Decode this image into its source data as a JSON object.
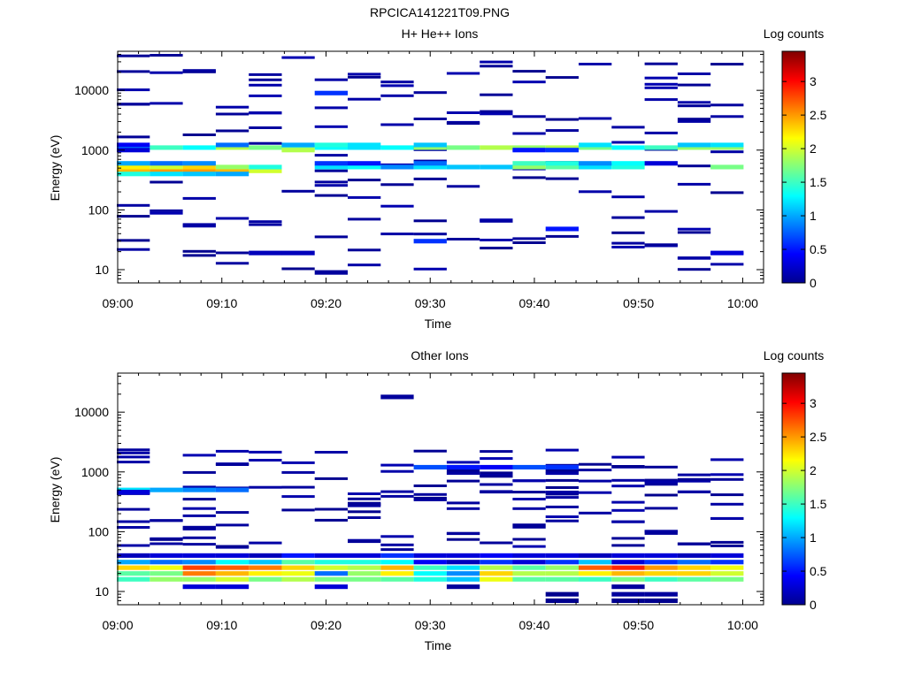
{
  "figure": {
    "title": "RPCICA141221T09.PNG"
  },
  "chart_data": [
    {
      "type": "heatmap",
      "title": "H+ He++ Ions",
      "xlabel": "Time",
      "ylabel": "Energy (eV)",
      "colorbar_label": "Log counts",
      "x_range": [
        "09:00",
        "10:02"
      ],
      "x_ticks": [
        "09:00",
        "09:10",
        "09:20",
        "09:30",
        "09:40",
        "09:50",
        "10:00"
      ],
      "y_scale": "log",
      "y_range": [
        6,
        45000
      ],
      "y_ticks": [
        "10",
        "100",
        "1000",
        "10000"
      ],
      "c_range": [
        0,
        3.45
      ],
      "c_ticks": [
        "0",
        "0.5",
        "1",
        "1.5",
        "2",
        "2.5",
        "3"
      ],
      "time_bins": [
        "09:01:30",
        "09:04:40",
        "09:07:50",
        "09:11:00",
        "09:14:10",
        "09:17:20",
        "09:20:30",
        "09:23:40",
        "09:26:50",
        "09:30:00",
        "09:33:10",
        "09:36:20",
        "09:39:30",
        "09:42:40",
        "09:45:50",
        "09:49:00",
        "09:52:10",
        "09:55:20",
        "09:58:30"
      ],
      "cells": [
        {
          "t": 0,
          "e": 450,
          "v": 2.4
        },
        {
          "t": 1,
          "e": 450,
          "v": 2.5
        },
        {
          "t": 2,
          "e": 450,
          "v": 2.5
        },
        {
          "t": 3,
          "e": 450,
          "v": 2.4
        },
        {
          "t": 4,
          "e": 450,
          "v": 2.0
        },
        {
          "t": 0,
          "e": 520,
          "v": 2.2
        },
        {
          "t": 1,
          "e": 520,
          "v": 2.0
        },
        {
          "t": 2,
          "e": 520,
          "v": 2.3
        },
        {
          "t": 3,
          "e": 520,
          "v": 1.8
        },
        {
          "t": 4,
          "e": 520,
          "v": 1.4
        },
        {
          "t": 0,
          "e": 400,
          "v": 1.4
        },
        {
          "t": 1,
          "e": 400,
          "v": 1.2
        },
        {
          "t": 2,
          "e": 400,
          "v": 1.1
        },
        {
          "t": 3,
          "e": 400,
          "v": 1.0
        },
        {
          "t": 0,
          "e": 600,
          "v": 1.0
        },
        {
          "t": 1,
          "e": 600,
          "v": 0.8
        },
        {
          "t": 2,
          "e": 600,
          "v": 0.9
        },
        {
          "t": 0,
          "e": 1100,
          "v": 1.1
        },
        {
          "t": 1,
          "e": 1100,
          "v": 1.5
        },
        {
          "t": 2,
          "e": 1100,
          "v": 1.3
        },
        {
          "t": 3,
          "e": 1100,
          "v": 1.9
        },
        {
          "t": 4,
          "e": 1100,
          "v": 1.7
        },
        {
          "t": 5,
          "e": 1100,
          "v": 1.6
        },
        {
          "t": 6,
          "e": 1100,
          "v": 1.3
        },
        {
          "t": 7,
          "e": 1100,
          "v": 1.2
        },
        {
          "t": 8,
          "e": 1100,
          "v": 1.3
        },
        {
          "t": 9,
          "e": 1100,
          "v": 1.8
        },
        {
          "t": 10,
          "e": 1100,
          "v": 1.7
        },
        {
          "t": 11,
          "e": 1100,
          "v": 1.9
        },
        {
          "t": 12,
          "e": 1100,
          "v": 1.8
        },
        {
          "t": 13,
          "e": 1100,
          "v": 1.9
        },
        {
          "t": 14,
          "e": 1100,
          "v": 1.7
        },
        {
          "t": 15,
          "e": 1100,
          "v": 1.3
        },
        {
          "t": 16,
          "e": 1100,
          "v": 1.5
        },
        {
          "t": 17,
          "e": 1100,
          "v": 1.8
        },
        {
          "t": 18,
          "e": 1100,
          "v": 1.8
        },
        {
          "t": 0,
          "e": 1220,
          "v": 0.4
        },
        {
          "t": 3,
          "e": 1220,
          "v": 0.8
        },
        {
          "t": 5,
          "e": 1220,
          "v": 1.0
        },
        {
          "t": 6,
          "e": 1220,
          "v": 1.4
        },
        {
          "t": 7,
          "e": 1220,
          "v": 1.2
        },
        {
          "t": 9,
          "e": 1220,
          "v": 1.1
        },
        {
          "t": 14,
          "e": 1220,
          "v": 1.2
        },
        {
          "t": 17,
          "e": 1220,
          "v": 1.1
        },
        {
          "t": 18,
          "e": 1220,
          "v": 1.2
        },
        {
          "t": 6,
          "e": 520,
          "v": 1.2
        },
        {
          "t": 7,
          "e": 520,
          "v": 1.3
        },
        {
          "t": 8,
          "e": 520,
          "v": 0.9
        },
        {
          "t": 9,
          "e": 520,
          "v": 1.2
        },
        {
          "t": 10,
          "e": 520,
          "v": 1.1
        },
        {
          "t": 11,
          "e": 520,
          "v": 1.1
        },
        {
          "t": 12,
          "e": 520,
          "v": 1.8
        },
        {
          "t": 13,
          "e": 520,
          "v": 1.6
        },
        {
          "t": 14,
          "e": 520,
          "v": 1.2
        },
        {
          "t": 15,
          "e": 520,
          "v": 1.4
        },
        {
          "t": 18,
          "e": 520,
          "v": 1.7
        },
        {
          "t": 6,
          "e": 600,
          "v": 0.6
        },
        {
          "t": 7,
          "e": 600,
          "v": 0.5
        },
        {
          "t": 9,
          "e": 600,
          "v": 0.8
        },
        {
          "t": 12,
          "e": 600,
          "v": 1.5
        },
        {
          "t": 13,
          "e": 600,
          "v": 1.4
        },
        {
          "t": 14,
          "e": 600,
          "v": 0.9
        },
        {
          "t": 15,
          "e": 600,
          "v": 1.3
        },
        {
          "t": 16,
          "e": 600,
          "v": 0.3
        },
        {
          "t": 0,
          "e": 1000,
          "v": 0.3
        },
        {
          "t": 5,
          "e": 1000,
          "v": 1.9
        },
        {
          "t": 12,
          "e": 1000,
          "v": 0.5
        },
        {
          "t": 13,
          "e": 1000,
          "v": 0.6
        },
        {
          "t": 6,
          "e": 9000,
          "v": 0.6
        },
        {
          "t": 9,
          "e": 30,
          "v": 0.6
        },
        {
          "t": 13,
          "e": 48,
          "v": 0.5
        },
        {
          "t": 4,
          "e": 19,
          "v": 0.2
        },
        {
          "t": 5,
          "e": 19,
          "v": 0.2
        },
        {
          "t": 18,
          "e": 19,
          "v": 0.3
        },
        {
          "t": 6,
          "e": 9,
          "v": 0.1
        }
      ],
      "sparse_dots": "low-count (~0.1-0.4) single-bin marks scattered across all energies 10 eV to 40000 eV"
    },
    {
      "type": "heatmap",
      "title": "Other Ions",
      "xlabel": "Time",
      "ylabel": "Energy (eV)",
      "colorbar_label": "Log counts",
      "x_range": [
        "09:00",
        "10:02"
      ],
      "x_ticks": [
        "09:00",
        "09:10",
        "09:20",
        "09:30",
        "09:40",
        "09:50",
        "10:00"
      ],
      "y_scale": "log",
      "y_range": [
        6,
        45000
      ],
      "y_ticks": [
        "10",
        "100",
        "1000",
        "10000"
      ],
      "c_range": [
        0,
        3.45
      ],
      "c_ticks": [
        "0",
        "0.5",
        "1",
        "1.5",
        "2",
        "2.5",
        "3"
      ],
      "time_bins": [
        "09:01:30",
        "09:04:40",
        "09:07:50",
        "09:11:00",
        "09:14:10",
        "09:17:20",
        "09:20:30",
        "09:23:40",
        "09:26:50",
        "09:30:00",
        "09:33:10",
        "09:36:20",
        "09:39:30",
        "09:42:40",
        "09:45:50",
        "09:49:00",
        "09:52:10",
        "09:55:20",
        "09:58:30"
      ],
      "cells": [
        {
          "t": 0,
          "e": 40,
          "v": 0.2
        },
        {
          "t": 1,
          "e": 40,
          "v": 0.3
        },
        {
          "t": 2,
          "e": 40,
          "v": 0.3
        },
        {
          "t": 3,
          "e": 40,
          "v": 0.3
        },
        {
          "t": 4,
          "e": 40,
          "v": 0.2
        },
        {
          "t": 5,
          "e": 40,
          "v": 0.5
        },
        {
          "t": 6,
          "e": 40,
          "v": 0.3
        },
        {
          "t": 7,
          "e": 40,
          "v": 0.3
        },
        {
          "t": 8,
          "e": 40,
          "v": 0.6
        },
        {
          "t": 9,
          "e": 40,
          "v": 0.3
        },
        {
          "t": 10,
          "e": 40,
          "v": 0.3
        },
        {
          "t": 11,
          "e": 40,
          "v": 0.4
        },
        {
          "t": 12,
          "e": 40,
          "v": 0.3
        },
        {
          "t": 13,
          "e": 40,
          "v": 0.3
        },
        {
          "t": 14,
          "e": 40,
          "v": 0.2
        },
        {
          "t": 15,
          "e": 40,
          "v": 0.3
        },
        {
          "t": 16,
          "e": 40,
          "v": 0.3
        },
        {
          "t": 17,
          "e": 40,
          "v": 0.2
        },
        {
          "t": 18,
          "e": 40,
          "v": 0.3
        },
        {
          "t": 0,
          "e": 31,
          "v": 1.0
        },
        {
          "t": 1,
          "e": 31,
          "v": 0.8
        },
        {
          "t": 2,
          "e": 31,
          "v": 0.9
        },
        {
          "t": 3,
          "e": 31,
          "v": 1.3
        },
        {
          "t": 4,
          "e": 31,
          "v": 1.1
        },
        {
          "t": 5,
          "e": 31,
          "v": 1.6
        },
        {
          "t": 6,
          "e": 31,
          "v": 1.4
        },
        {
          "t": 7,
          "e": 31,
          "v": 1.4
        },
        {
          "t": 8,
          "e": 31,
          "v": 1.3
        },
        {
          "t": 9,
          "e": 31,
          "v": 0.4
        },
        {
          "t": 10,
          "e": 31,
          "v": 0.2
        },
        {
          "t": 11,
          "e": 31,
          "v": 0.6
        },
        {
          "t": 12,
          "e": 31,
          "v": 0.3
        },
        {
          "t": 13,
          "e": 31,
          "v": 0.6
        },
        {
          "t": 14,
          "e": 31,
          "v": 1.1
        },
        {
          "t": 15,
          "e": 31,
          "v": 0.3
        },
        {
          "t": 16,
          "e": 31,
          "v": 0.6
        },
        {
          "t": 17,
          "e": 31,
          "v": 0.8
        },
        {
          "t": 18,
          "e": 31,
          "v": 0.6
        },
        {
          "t": 0,
          "e": 25,
          "v": 2.3
        },
        {
          "t": 1,
          "e": 25,
          "v": 2.1
        },
        {
          "t": 2,
          "e": 25,
          "v": 2.8
        },
        {
          "t": 3,
          "e": 25,
          "v": 2.7
        },
        {
          "t": 4,
          "e": 25,
          "v": 2.6
        },
        {
          "t": 5,
          "e": 25,
          "v": 2.3
        },
        {
          "t": 6,
          "e": 25,
          "v": 2.0
        },
        {
          "t": 7,
          "e": 25,
          "v": 1.9
        },
        {
          "t": 8,
          "e": 25,
          "v": 2.4
        },
        {
          "t": 9,
          "e": 25,
          "v": 1.5
        },
        {
          "t": 10,
          "e": 25,
          "v": 1.2
        },
        {
          "t": 11,
          "e": 25,
          "v": 1.9
        },
        {
          "t": 12,
          "e": 25,
          "v": 1.6
        },
        {
          "t": 13,
          "e": 25,
          "v": 1.8
        },
        {
          "t": 14,
          "e": 25,
          "v": 2.7
        },
        {
          "t": 15,
          "e": 25,
          "v": 2.9
        },
        {
          "t": 16,
          "e": 25,
          "v": 2.5
        },
        {
          "t": 17,
          "e": 25,
          "v": 2.3
        },
        {
          "t": 18,
          "e": 25,
          "v": 2.1
        },
        {
          "t": 0,
          "e": 20,
          "v": 1.6
        },
        {
          "t": 1,
          "e": 20,
          "v": 1.7
        },
        {
          "t": 2,
          "e": 20,
          "v": 2.6
        },
        {
          "t": 3,
          "e": 20,
          "v": 2.4
        },
        {
          "t": 4,
          "e": 20,
          "v": 2.2
        },
        {
          "t": 5,
          "e": 20,
          "v": 2.1
        },
        {
          "t": 6,
          "e": 20,
          "v": 0.8
        },
        {
          "t": 7,
          "e": 20,
          "v": 1.8
        },
        {
          "t": 8,
          "e": 20,
          "v": 2.2
        },
        {
          "t": 9,
          "e": 20,
          "v": 1.3
        },
        {
          "t": 10,
          "e": 20,
          "v": 0.9
        },
        {
          "t": 11,
          "e": 20,
          "v": 2.3
        },
        {
          "t": 12,
          "e": 20,
          "v": 1.9
        },
        {
          "t": 13,
          "e": 20,
          "v": 1.9
        },
        {
          "t": 14,
          "e": 20,
          "v": 2.2
        },
        {
          "t": 15,
          "e": 20,
          "v": 2.4
        },
        {
          "t": 16,
          "e": 20,
          "v": 2.3
        },
        {
          "t": 17,
          "e": 20,
          "v": 2.3
        },
        {
          "t": 18,
          "e": 20,
          "v": 2.0
        },
        {
          "t": 0,
          "e": 16,
          "v": 1.5
        },
        {
          "t": 1,
          "e": 16,
          "v": 1.8
        },
        {
          "t": 2,
          "e": 16,
          "v": 1.8
        },
        {
          "t": 3,
          "e": 16,
          "v": 2.0
        },
        {
          "t": 4,
          "e": 16,
          "v": 1.7
        },
        {
          "t": 5,
          "e": 16,
          "v": 1.9
        },
        {
          "t": 6,
          "e": 16,
          "v": 1.7
        },
        {
          "t": 7,
          "e": 16,
          "v": 1.7
        },
        {
          "t": 8,
          "e": 16,
          "v": 1.6
        },
        {
          "t": 9,
          "e": 16,
          "v": 1.4
        },
        {
          "t": 10,
          "e": 16,
          "v": 1.1
        },
        {
          "t": 11,
          "e": 16,
          "v": 2.1
        },
        {
          "t": 12,
          "e": 16,
          "v": 1.6
        },
        {
          "t": 13,
          "e": 16,
          "v": 1.6
        },
        {
          "t": 14,
          "e": 16,
          "v": 1.5
        },
        {
          "t": 15,
          "e": 16,
          "v": 1.7
        },
        {
          "t": 16,
          "e": 16,
          "v": 1.5
        },
        {
          "t": 17,
          "e": 16,
          "v": 1.6
        },
        {
          "t": 18,
          "e": 16,
          "v": 1.7
        },
        {
          "t": 2,
          "e": 12,
          "v": 0.3
        },
        {
          "t": 3,
          "e": 12,
          "v": 0.3
        },
        {
          "t": 6,
          "e": 12,
          "v": 0.3
        },
        {
          "t": 10,
          "e": 12,
          "v": 0.1
        },
        {
          "t": 15,
          "e": 12,
          "v": 0.1
        },
        {
          "t": 13,
          "e": 9,
          "v": 0.05
        },
        {
          "t": 15,
          "e": 9,
          "v": 0.1
        },
        {
          "t": 16,
          "e": 9,
          "v": 0.1
        },
        {
          "t": 13,
          "e": 7,
          "v": 0.05
        },
        {
          "t": 15,
          "e": 7,
          "v": 0.05
        },
        {
          "t": 16,
          "e": 7,
          "v": 0.05
        },
        {
          "t": 0,
          "e": 500,
          "v": 1.2
        },
        {
          "t": 1,
          "e": 500,
          "v": 1.0
        },
        {
          "t": 2,
          "e": 500,
          "v": 0.9
        },
        {
          "t": 3,
          "e": 500,
          "v": 0.8
        },
        {
          "t": 0,
          "e": 460,
          "v": 0.3
        },
        {
          "t": 9,
          "e": 1200,
          "v": 0.7
        },
        {
          "t": 10,
          "e": 1200,
          "v": 0.5
        },
        {
          "t": 11,
          "e": 1200,
          "v": 0.4
        },
        {
          "t": 12,
          "e": 1200,
          "v": 0.7
        },
        {
          "t": 13,
          "e": 1200,
          "v": 0.6
        },
        {
          "t": 8,
          "e": 18000,
          "v": 0.1
        }
      ],
      "sparse_dots": "low-count (~0.1-0.4) single-bin marks between 50 eV and 2500 eV"
    }
  ],
  "colors": {
    "background": "#ffffff",
    "axis": "#000000",
    "colormap": "jet"
  }
}
